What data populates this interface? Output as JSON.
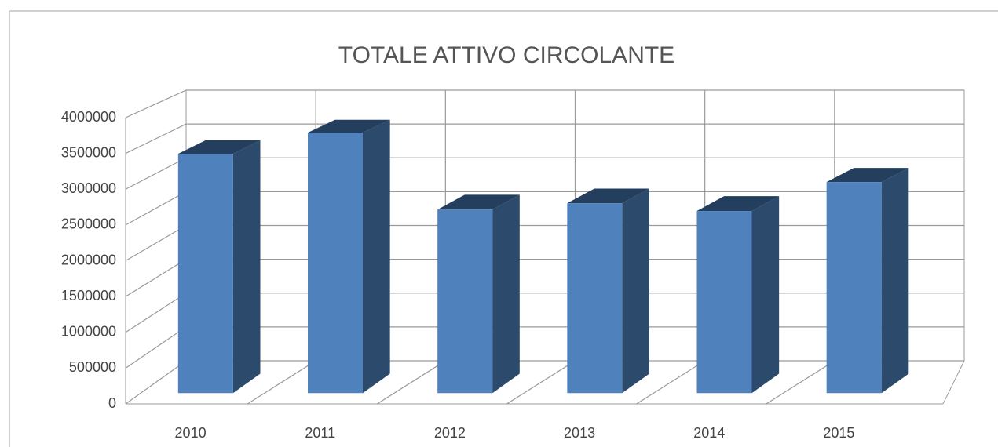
{
  "chart_data": {
    "type": "bar3d",
    "title": "TOTALE ATTIVO CIRCOLANTE",
    "categories": [
      "2010",
      "2011",
      "2012",
      "2013",
      "2014",
      "2015"
    ],
    "values": [
      3390000,
      3690000,
      2600000,
      2690000,
      2580000,
      2990000
    ],
    "color": "#4f81bd",
    "ylim": [
      0,
      4000000
    ],
    "yticks": [
      0,
      500000,
      1000000,
      1500000,
      2000000,
      2500000,
      3000000,
      3500000,
      4000000
    ],
    "grid": true
  }
}
